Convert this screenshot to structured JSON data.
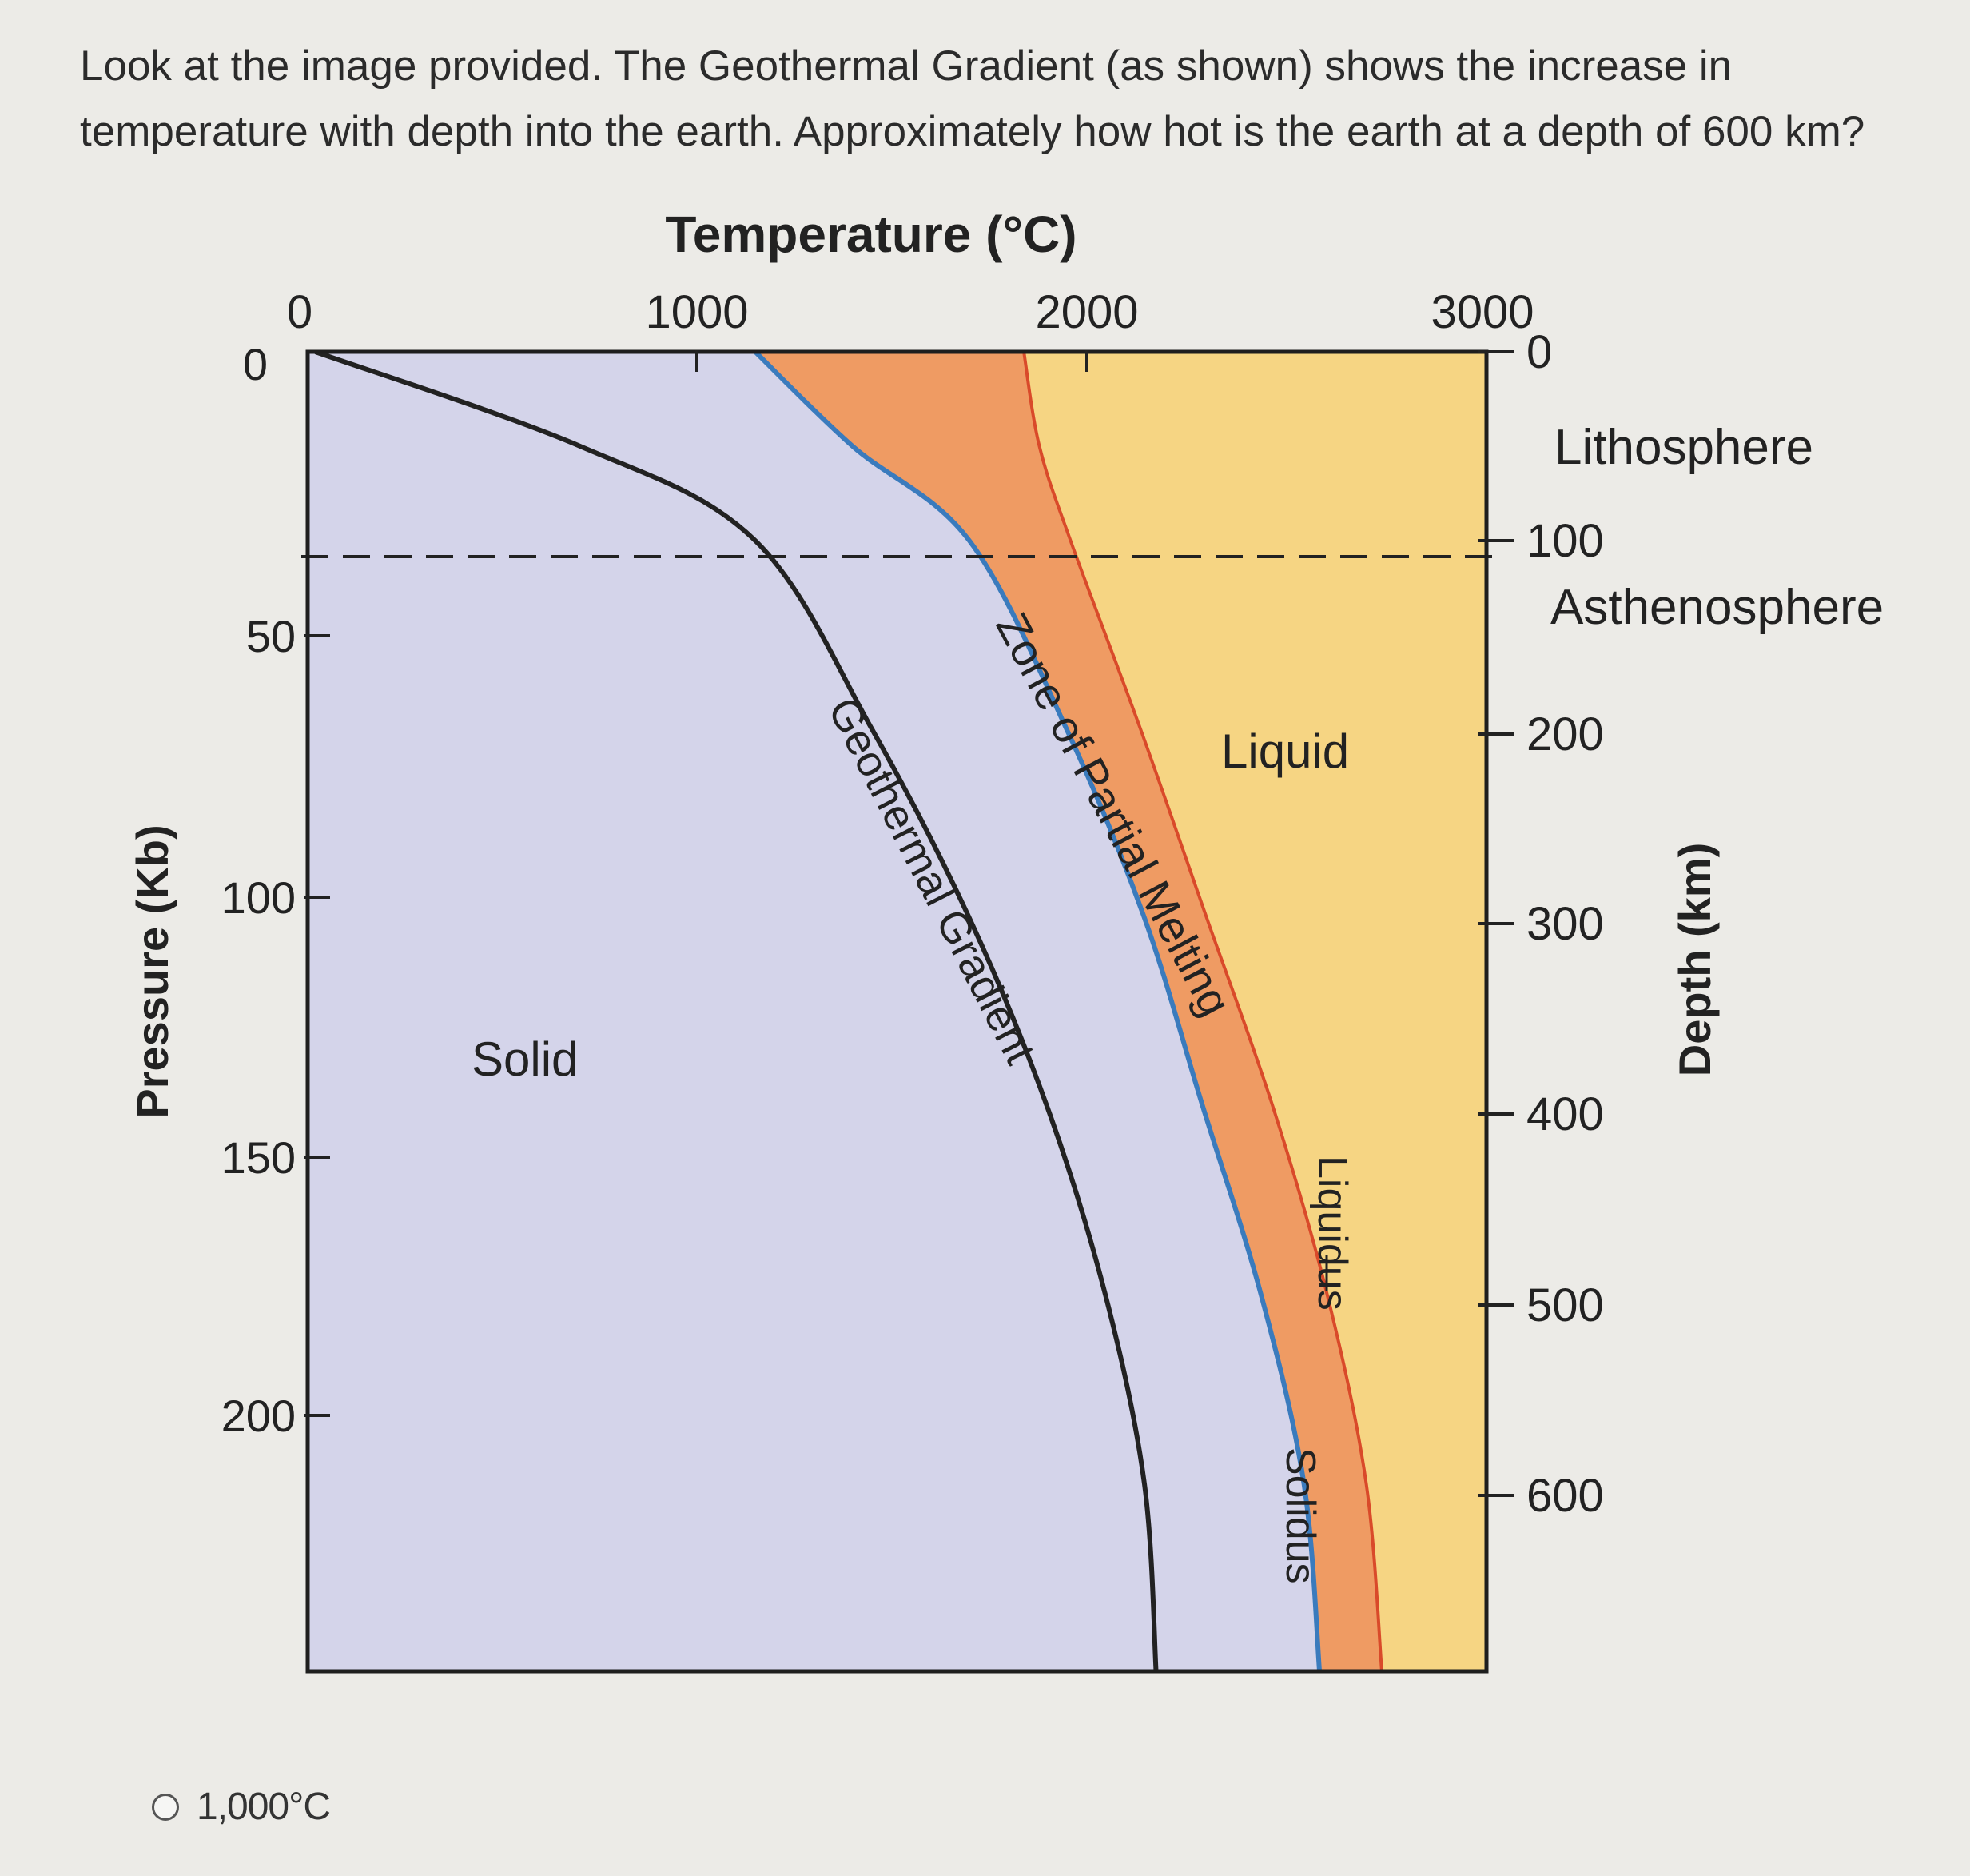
{
  "question": {
    "text": "Look at the image provided. The Geothermal Gradient (as shown) shows the increase in temperature with depth into the earth. Approximately how hot is the earth at a depth of 600 km?"
  },
  "chart_data": {
    "type": "area",
    "title": "Temperature (°C)",
    "x_axis": {
      "label": "Temperature (°C)",
      "range": [
        0,
        3000
      ],
      "ticks": [
        "0",
        "1000",
        "2000",
        "3000"
      ]
    },
    "y_left": {
      "label": "Pressure (Kb)",
      "range": [
        0,
        250
      ],
      "ticks": [
        "0",
        "50",
        "100",
        "150",
        "200"
      ]
    },
    "y_right": {
      "label": "Depth (km)",
      "range": [
        0,
        700
      ],
      "ticks": [
        "0",
        "100",
        "200",
        "300",
        "400",
        "500",
        "600"
      ]
    },
    "boundary": {
      "depth_km": 100,
      "above": "Lithosphere",
      "below": "Asthenosphere"
    },
    "regions": [
      {
        "label": "Solid",
        "color": "#d4d4ea"
      },
      {
        "label": "Zone of Partial Melting",
        "color": "#ef9b63"
      },
      {
        "label": "Liquid",
        "color": "#f6d583"
      }
    ],
    "series": [
      {
        "name": "Geothermal Gradient",
        "color": "#222222",
        "x": [
          20,
          700,
          1150,
          1450,
          1700,
          1900,
          2050,
          2150,
          2180
        ],
        "y": [
          0,
          50,
          100,
          200,
          300,
          400,
          500,
          600,
          700
        ]
      },
      {
        "name": "Solidus",
        "color": "#3a7bbd",
        "x": [
          1150,
          1400,
          1700,
          1950,
          2150,
          2300,
          2450,
          2560,
          2600
        ],
        "y": [
          0,
          50,
          100,
          200,
          300,
          400,
          500,
          600,
          700
        ]
      },
      {
        "name": "Liquidus",
        "color": "#d94a2a",
        "x": [
          1840,
          1880,
          1960,
          2140,
          2310,
          2480,
          2620,
          2720,
          2760
        ],
        "y": [
          0,
          50,
          100,
          200,
          300,
          400,
          500,
          600,
          700
        ]
      }
    ],
    "annotations": [
      "Solid",
      "Liquid",
      "Geothermal Gradient",
      "Zone of Partial Melting",
      "Liquidus",
      "Solidus",
      "Lithosphere",
      "Asthenosphere"
    ]
  },
  "answers": [
    {
      "label": "1,000°C"
    }
  ]
}
